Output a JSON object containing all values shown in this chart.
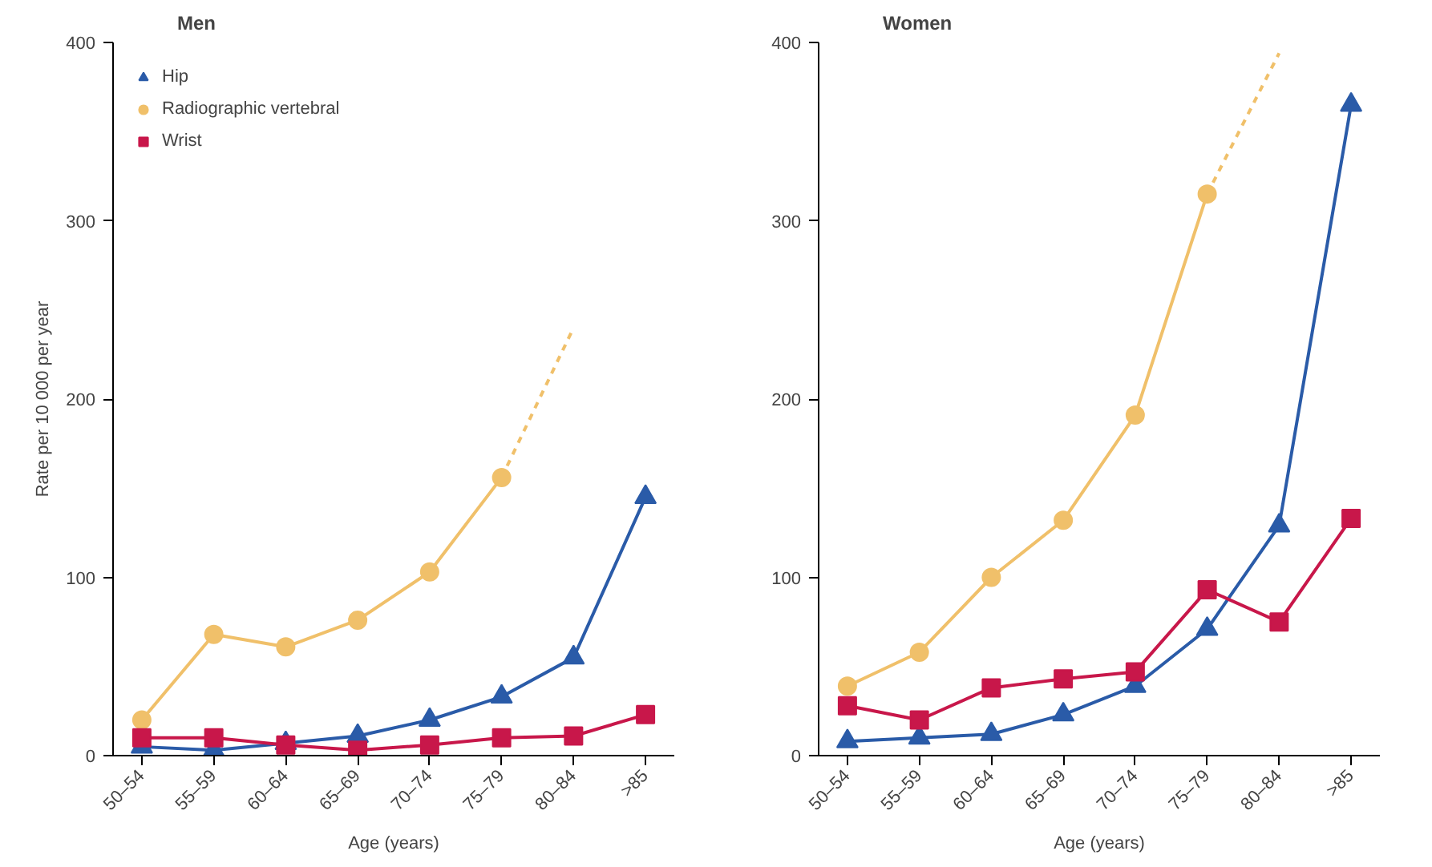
{
  "chart_data": [
    {
      "type": "line",
      "title": "Men",
      "xlabel": "Age (years)",
      "ylabel": "Rate per 10 000 per year",
      "categories": [
        "50–54",
        "55–59",
        "60–64",
        "65–69",
        "70–74",
        "75–79",
        "80–84",
        ">85"
      ],
      "ylim": [
        0,
        400
      ],
      "yticks": [
        0,
        100,
        200,
        300,
        400
      ],
      "grid": false,
      "legend": "top left",
      "series": [
        {
          "name": "Hip",
          "color": "#2a5ba8",
          "marker": "triangle",
          "values": [
            5,
            3,
            7,
            11,
            20,
            33,
            55,
            145
          ]
        },
        {
          "name": "Radiographic vertebral",
          "color": "#f0c06a",
          "marker": "circle",
          "values": [
            20,
            68,
            61,
            76,
            103,
            156,
            null,
            null
          ]
        },
        {
          "name": "Wrist",
          "color": "#c8174a",
          "marker": "square",
          "values": [
            10,
            10,
            6,
            3,
            6,
            10,
            11,
            23
          ]
        },
        {
          "color": "#f0c06a",
          "line_style": "dashed",
          "values": [
            null,
            null,
            null,
            null,
            null,
            156,
            240,
            null
          ]
        }
      ]
    },
    {
      "type": "line",
      "title": "Women",
      "xlabel": "Age (years)",
      "categories": [
        "50–54",
        "55–59",
        "60–64",
        "65–69",
        "70–74",
        "75–79",
        "80–84",
        ">85"
      ],
      "ylim": [
        0,
        400
      ],
      "yticks": [
        0,
        100,
        200,
        300,
        400
      ],
      "grid": false,
      "series": [
        {
          "color": "#2a5ba8",
          "marker": "triangle",
          "values": [
            8,
            10,
            12,
            23,
            39,
            71,
            129,
            365
          ]
        },
        {
          "color": "#f0c06a",
          "marker": "circle",
          "values": [
            39,
            58,
            100,
            132,
            191,
            315,
            null,
            null
          ]
        },
        {
          "color": "#c8174a",
          "marker": "square",
          "values": [
            28,
            20,
            38,
            43,
            47,
            93,
            75,
            133
          ]
        },
        {
          "color": "#f0c06a",
          "line_style": "dashed",
          "values": [
            null,
            null,
            null,
            null,
            null,
            315,
            394,
            null
          ]
        }
      ]
    }
  ]
}
